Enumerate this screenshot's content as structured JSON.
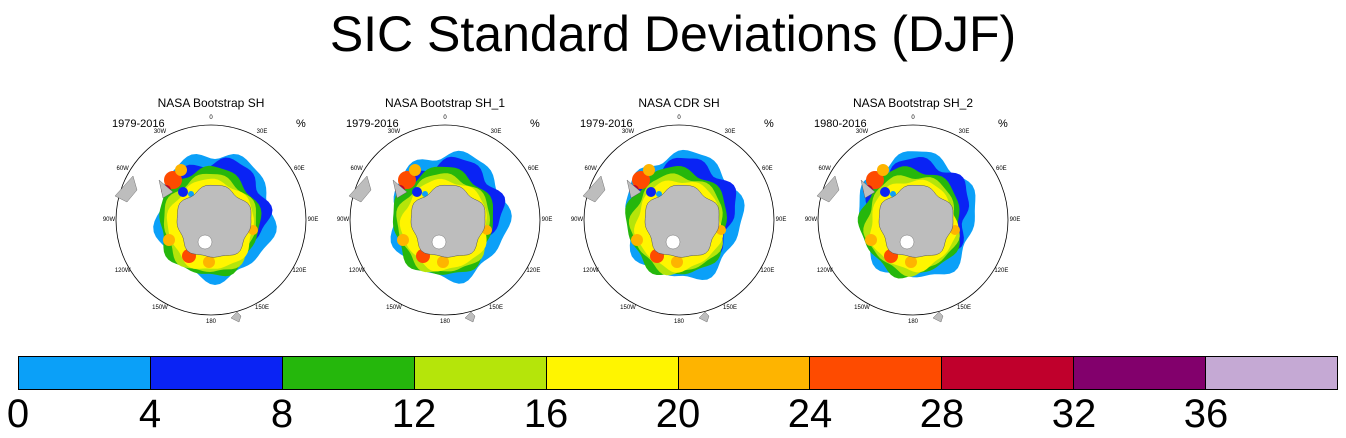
{
  "title": "SIC Standard Deviations (DJF)",
  "panels": [
    {
      "title": "NASA Bootstrap SH",
      "period": "1979-2016",
      "unit": "%"
    },
    {
      "title": "NASA Bootstrap SH_1",
      "period": "1979-2016",
      "unit": "%"
    },
    {
      "title": "NASA CDR SH",
      "period": "1979-2016",
      "unit": "%"
    },
    {
      "title": "NASA Bootstrap SH_2",
      "period": "1980-2016",
      "unit": "%"
    }
  ],
  "longitude_labels": [
    "0",
    "30E",
    "60E",
    "90E",
    "120E",
    "150E",
    "180",
    "150W",
    "120W",
    "90W",
    "60W",
    "30W"
  ],
  "colorbar": {
    "colors": [
      "#0ba0f8",
      "#0a23f4",
      "#25b70c",
      "#b5e50a",
      "#fff500",
      "#feb400",
      "#fe4b00",
      "#c0002c",
      "#82006c",
      "#c5a9d4"
    ],
    "tick_labels": [
      "0",
      "4",
      "8",
      "12",
      "16",
      "20",
      "24",
      "28",
      "32",
      "36"
    ]
  },
  "land_color": "#bdbdbd"
}
